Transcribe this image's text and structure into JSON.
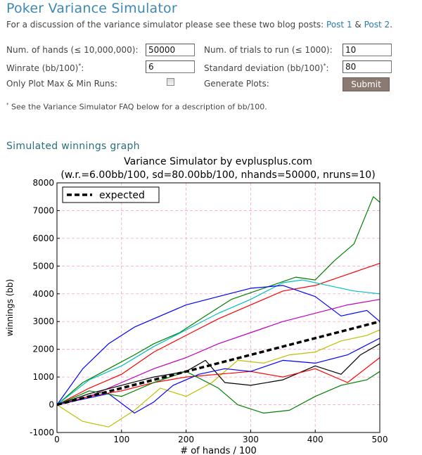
{
  "page": {
    "title": "Poker Variance Simulator",
    "intro_text": "For a discussion of the variance simulator please see these two blog posts: ",
    "link1": "Post 1",
    "link_sep": " & ",
    "link2": "Post 2",
    "intro_end": "."
  },
  "form": {
    "hands_label": "Num. of hands (≤ 10,000,000):",
    "hands_value": "50000",
    "trials_label": "Num. of trials to run (≤ 1000):",
    "trials_value": "10",
    "winrate_label": "Winrate (bb/100)",
    "winrate_value": "6",
    "stddev_label": "Standard deviation (bb/100)",
    "stddev_value": "80",
    "footnote_mark": "*",
    "minmax_label": "Only Plot Max & Min Runs:",
    "plots_label": "Generate Plots:",
    "submit_label": "Submit"
  },
  "footnote": {
    "mark": "*",
    "text": " See the Variance Simulator FAQ below for a description of bb/100."
  },
  "section": {
    "title": "Simulated winnings graph"
  },
  "chart_data": {
    "type": "line",
    "title": "Variance Simulator by evplusplus.com",
    "subtitle": "(w.r.=6.00bb/100, sd=80.00bb/100, nhands=50000, nruns=10)",
    "xlabel": "# of hands / 100",
    "ylabel": "winnings (bb)",
    "xlim": [
      0,
      500
    ],
    "ylim": [
      -1000,
      8000
    ],
    "xticks": [
      0,
      100,
      200,
      300,
      400,
      500
    ],
    "yticks": [
      -1000,
      0,
      1000,
      2000,
      3000,
      4000,
      5000,
      6000,
      7000,
      8000
    ],
    "grid": true,
    "legend_position": "top-left",
    "expected": {
      "name": "expected",
      "color": "#000000",
      "x": [
        0,
        500
      ],
      "y": [
        0,
        3000
      ]
    },
    "series": [
      {
        "color": "#008000",
        "x": [
          0,
          40,
          80,
          120,
          150,
          190,
          230,
          270,
          320,
          370,
          400,
          430,
          460,
          490,
          500
        ],
        "y": [
          0,
          800,
          1300,
          1800,
          2200,
          2600,
          3200,
          3800,
          4200,
          4600,
          4500,
          5200,
          5800,
          7500,
          7300
        ]
      },
      {
        "color": "#ff0000",
        "x": [
          0,
          50,
          100,
          150,
          200,
          250,
          300,
          350,
          400,
          450,
          500
        ],
        "y": [
          0,
          600,
          1100,
          1900,
          2500,
          3100,
          3600,
          4100,
          4300,
          4700,
          5100
        ]
      },
      {
        "color": "#00bfbf",
        "x": [
          0,
          50,
          100,
          150,
          200,
          250,
          300,
          350,
          380,
          420,
          460,
          500
        ],
        "y": [
          0,
          900,
          1400,
          2100,
          2700,
          3300,
          3800,
          4400,
          4500,
          4300,
          4100,
          4000
        ]
      },
      {
        "color": "#0000ff",
        "x": [
          0,
          40,
          80,
          120,
          160,
          200,
          250,
          300,
          350,
          400,
          440,
          480,
          500
        ],
        "y": [
          0,
          1300,
          2200,
          2800,
          3200,
          3600,
          3900,
          4200,
          4300,
          3900,
          3200,
          3400,
          3000
        ]
      },
      {
        "color": "#bf00bf",
        "x": [
          0,
          50,
          100,
          150,
          200,
          250,
          300,
          350,
          400,
          450,
          500
        ],
        "y": [
          0,
          300,
          800,
          1300,
          1700,
          2200,
          2600,
          3000,
          3300,
          3600,
          3800
        ]
      },
      {
        "color": "#bfbf00",
        "x": [
          0,
          40,
          80,
          120,
          160,
          200,
          240,
          280,
          320,
          360,
          400,
          440,
          480,
          500
        ],
        "y": [
          0,
          -600,
          -800,
          -200,
          600,
          300,
          800,
          1600,
          1500,
          1800,
          1900,
          2300,
          2500,
          2700
        ]
      },
      {
        "color": "#000000",
        "x": [
          0,
          50,
          100,
          150,
          200,
          230,
          260,
          300,
          350,
          400,
          440,
          470,
          500
        ],
        "y": [
          0,
          400,
          700,
          1000,
          1200,
          1600,
          800,
          700,
          900,
          1400,
          1100,
          1800,
          2200
        ]
      },
      {
        "color": "#ff0000",
        "x": [
          0,
          50,
          100,
          150,
          200,
          250,
          300,
          350,
          400,
          450,
          500
        ],
        "y": [
          0,
          300,
          500,
          800,
          1000,
          1100,
          1200,
          1000,
          1300,
          800,
          1700
        ]
      },
      {
        "color": "#0000ff",
        "x": [
          0,
          40,
          80,
          120,
          150,
          180,
          220,
          260,
          300,
          350,
          400,
          450,
          500
        ],
        "y": [
          0,
          200,
          400,
          -300,
          100,
          700,
          1100,
          1300,
          1200,
          1600,
          1500,
          1800,
          2400
        ]
      },
      {
        "color": "#008000",
        "x": [
          0,
          50,
          100,
          150,
          200,
          250,
          280,
          320,
          360,
          400,
          440,
          480,
          500
        ],
        "y": [
          0,
          500,
          300,
          800,
          1200,
          600,
          0,
          -300,
          -200,
          300,
          700,
          900,
          1200
        ]
      }
    ]
  }
}
